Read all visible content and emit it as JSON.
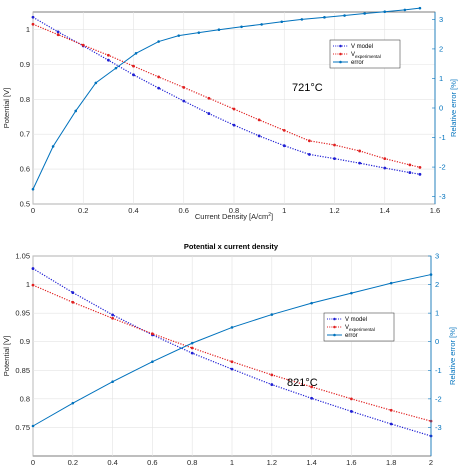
{
  "chart_data": [
    {
      "type": "line",
      "title": "",
      "annotation": "721°C",
      "xlabel": "Current Density [A/cm",
      "xlabel_sup": "2",
      "xlabel_end": "]",
      "ylabel_left": "Potential [V]",
      "ylabel_right": "Relative error [%]",
      "xlim": [
        0,
        1.6
      ],
      "ylim_left": [
        0.5,
        1.05
      ],
      "ylim_right": [
        -3.25,
        3.25
      ],
      "xticks": [
        "0",
        "0.2",
        "0.4",
        "0.6",
        "0.8",
        "1",
        "1.2",
        "1.4",
        "1.6"
      ],
      "yticks_left": [
        "0.5",
        "0.6",
        "0.7",
        "0.8",
        "0.9",
        "1"
      ],
      "yticks_right": [
        "-3",
        "-2",
        "-1",
        "0",
        "1",
        "2",
        "3"
      ],
      "legend_position": "upper-right",
      "legend": [
        {
          "label": "V model",
          "sub": "",
          "color": "#1f1fd4",
          "style": "dotted-marker"
        },
        {
          "label": "V",
          "sub": "experimental",
          "color": "#e02020",
          "style": "dotted-marker"
        },
        {
          "label": "error",
          "sub": "",
          "color": "#0072BD",
          "style": "solid-marker"
        }
      ],
      "series": [
        {
          "name": "V model",
          "axis": "left",
          "x": [
            0,
            0.1,
            0.2,
            0.3,
            0.4,
            0.5,
            0.6,
            0.7,
            0.8,
            0.9,
            1.0,
            1.1,
            1.2,
            1.3,
            1.4,
            1.5,
            1.54
          ],
          "y": [
            1.035,
            0.993,
            0.953,
            0.912,
            0.87,
            0.832,
            0.795,
            0.759,
            0.726,
            0.695,
            0.667,
            0.642,
            0.63,
            0.617,
            0.603,
            0.59,
            0.585
          ]
        },
        {
          "name": "V experimental",
          "axis": "left",
          "x": [
            0,
            0.1,
            0.2,
            0.3,
            0.4,
            0.5,
            0.6,
            0.7,
            0.8,
            0.9,
            1.0,
            1.1,
            1.2,
            1.3,
            1.4,
            1.5,
            1.54
          ],
          "y": [
            1.015,
            0.985,
            0.955,
            0.926,
            0.895,
            0.864,
            0.834,
            0.803,
            0.772,
            0.741,
            0.711,
            0.681,
            0.669,
            0.652,
            0.63,
            0.612,
            0.605
          ]
        },
        {
          "name": "error",
          "axis": "right",
          "x": [
            0,
            0.08,
            0.17,
            0.25,
            0.33,
            0.41,
            0.5,
            0.58,
            0.66,
            0.74,
            0.83,
            0.91,
            0.99,
            1.07,
            1.16,
            1.24,
            1.32,
            1.4,
            1.48,
            1.54
          ],
          "y": [
            -2.75,
            -1.3,
            -0.1,
            0.85,
            1.35,
            1.85,
            2.25,
            2.45,
            2.55,
            2.65,
            2.75,
            2.83,
            2.92,
            3.0,
            3.07,
            3.13,
            3.2,
            3.26,
            3.32,
            3.38
          ]
        }
      ]
    },
    {
      "type": "line",
      "title": "Potential x current density",
      "annotation": "821°C",
      "xlabel": "",
      "ylabel_left": "Potential [V]",
      "ylabel_right": "Relative error [%]",
      "xlim": [
        0,
        2
      ],
      "ylim_left": [
        0.7,
        1.05
      ],
      "ylim_right": [
        -4,
        3
      ],
      "xticks": [
        "0",
        "0.2",
        "0.4",
        "0.6",
        "0.8",
        "1",
        "1.2",
        "1.4",
        "1.6",
        "1.8",
        "2"
      ],
      "yticks_left": [
        "0.75",
        "0.8",
        "0.85",
        "0.9",
        "0.95",
        "1",
        "1.05"
      ],
      "yticks_right": [
        "-3",
        "-2",
        "-1",
        "0",
        "1",
        "2",
        "3"
      ],
      "legend_position": "right",
      "legend": [
        {
          "label": "V model",
          "sub": "",
          "color": "#1f1fd4",
          "style": "dotted-marker"
        },
        {
          "label": "V",
          "sub": "experimental",
          "color": "#e02020",
          "style": "dotted-marker"
        },
        {
          "label": "error",
          "sub": "",
          "color": "#0072BD",
          "style": "solid-marker"
        }
      ],
      "series": [
        {
          "name": "V model",
          "axis": "left",
          "x": [
            0,
            0.2,
            0.4,
            0.6,
            0.8,
            1.0,
            1.2,
            1.4,
            1.6,
            1.8,
            2.0
          ],
          "y": [
            1.028,
            0.986,
            0.947,
            0.912,
            0.88,
            0.852,
            0.825,
            0.801,
            0.778,
            0.756,
            0.735
          ]
        },
        {
          "name": "V experimental",
          "axis": "left",
          "x": [
            0,
            0.2,
            0.4,
            0.6,
            0.8,
            1.0,
            1.2,
            1.4,
            1.6,
            1.8,
            2.0
          ],
          "y": [
            0.999,
            0.969,
            0.941,
            0.914,
            0.889,
            0.865,
            0.842,
            0.821,
            0.8,
            0.78,
            0.761
          ]
        },
        {
          "name": "error",
          "axis": "right",
          "x": [
            0,
            0.2,
            0.4,
            0.6,
            0.8,
            1.0,
            1.2,
            1.4,
            1.6,
            1.8,
            2.0
          ],
          "y": [
            -2.95,
            -2.15,
            -1.4,
            -0.7,
            -0.05,
            0.5,
            0.95,
            1.35,
            1.7,
            2.05,
            2.35
          ]
        }
      ]
    }
  ]
}
